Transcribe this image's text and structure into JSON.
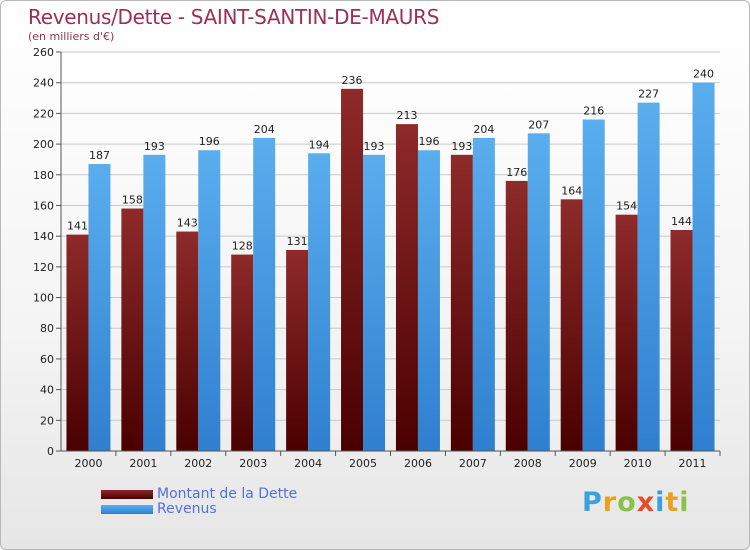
{
  "header": {
    "title": "Revenus/Dette - SAINT-SANTIN-DE-MAURS",
    "subtitle": "(en milliers d'€)"
  },
  "chart_data": {
    "type": "bar",
    "title": "Revenus/Dette - SAINT-SANTIN-DE-MAURS",
    "subtitle": "(en milliers d'€)",
    "xlabel": "",
    "ylabel": "",
    "categories": [
      "2000",
      "2001",
      "2002",
      "2003",
      "2004",
      "2005",
      "2006",
      "2007",
      "2008",
      "2009",
      "2010",
      "2011"
    ],
    "series": [
      {
        "name": "Montant de la Dette",
        "color": "#7a1414",
        "values": [
          141,
          158,
          143,
          128,
          131,
          236,
          213,
          193,
          176,
          164,
          154,
          144
        ]
      },
      {
        "name": "Revenus",
        "color": "#4a9fe6",
        "values": [
          187,
          193,
          196,
          204,
          194,
          193,
          196,
          204,
          207,
          216,
          227,
          240
        ]
      }
    ],
    "ylim": [
      0,
      260
    ],
    "yticks": [
      0,
      20,
      40,
      60,
      80,
      100,
      120,
      140,
      160,
      180,
      200,
      220,
      240,
      260
    ],
    "grid": true,
    "legend": "bottom-left"
  },
  "legend": {
    "items": [
      {
        "label": "Montant de la Dette",
        "color": "#6b0f0f"
      },
      {
        "label": "Revenus",
        "color": "#4a9fe6"
      }
    ]
  },
  "logo": {
    "letters": [
      "P",
      "r",
      "o",
      "x",
      "i",
      "t",
      "i"
    ],
    "colors": [
      "#3aa0e0",
      "#e8a21c",
      "#8bc34a",
      "#e84b2a",
      "#3aa0e0",
      "#e8a21c",
      "#8bc34a"
    ]
  }
}
